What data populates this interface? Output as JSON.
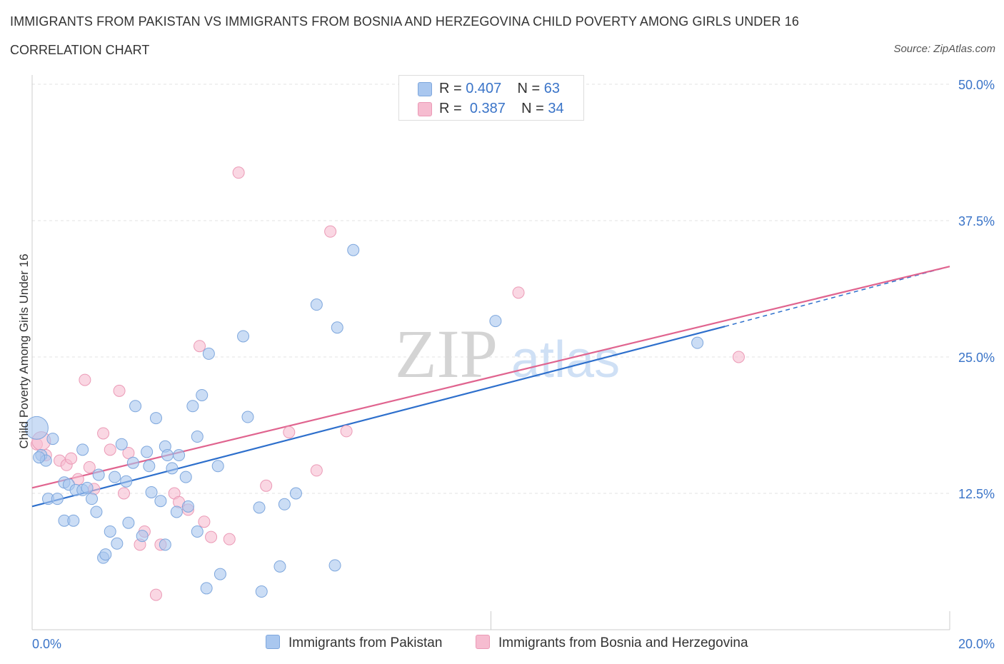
{
  "header": {
    "title": "IMMIGRANTS FROM PAKISTAN VS IMMIGRANTS FROM BOSNIA AND HERZEGOVINA CHILD POVERTY AMONG GIRLS UNDER 16",
    "subtitle": "CORRELATION CHART",
    "source": "Source: ZipAtlas.com"
  },
  "legend": {
    "rows": [
      {
        "r_label": "R =",
        "r_value": "0.407",
        "n_label": "N =",
        "n_value": "63"
      },
      {
        "r_label": "R =",
        "r_value": "0.387",
        "n_label": "N =",
        "n_value": "34"
      }
    ]
  },
  "bottom_legend": {
    "series1": "Immigrants from Pakistan",
    "series2": "Immigrants from Bosnia and Herzegovina"
  },
  "watermark": {
    "part1": "ZIP",
    "part2": "atlas"
  },
  "colors": {
    "blue_fill": "#a9c7ef",
    "blue_stroke": "#7ea7dd",
    "blue_line": "#2d6fcc",
    "pink_fill": "#f6bcd0",
    "pink_stroke": "#eb9ab6",
    "pink_line": "#e0648f",
    "axis_text": "#3a74c8",
    "grid": "#e3e3e3"
  },
  "chart_data": {
    "type": "scatter",
    "title": "IMMIGRANTS FROM PAKISTAN VS IMMIGRANTS FROM BOSNIA AND HERZEGOVINA CHILD POVERTY AMONG GIRLS UNDER 16",
    "xlabel": "",
    "ylabel": "Child Poverty Among Girls Under 16",
    "xlim": [
      0,
      20
    ],
    "ylim": [
      0,
      50
    ],
    "x_tick_labels": [
      "0.0%",
      "20.0%"
    ],
    "y_ticks": [
      12.5,
      25.0,
      37.5,
      50.0
    ],
    "y_tick_labels": [
      "12.5%",
      "25.0%",
      "37.5%",
      "50.0%"
    ],
    "grid": true,
    "legend_position": "top-center",
    "series": [
      {
        "name": "Immigrants from Pakistan",
        "R": 0.407,
        "N": 63,
        "trend": {
          "x": [
            0,
            15.1
          ],
          "y": [
            11.3,
            27.8
          ],
          "dashed_extension_to": [
            20,
            33.3
          ]
        },
        "points": [
          [
            0.1,
            18.5
          ],
          [
            0.2,
            16.0
          ],
          [
            0.3,
            15.5
          ],
          [
            0.45,
            17.5
          ],
          [
            0.35,
            12.0
          ],
          [
            0.55,
            12.0
          ],
          [
            0.7,
            13.5
          ],
          [
            0.8,
            13.3
          ],
          [
            0.7,
            10.0
          ],
          [
            0.9,
            10.0
          ],
          [
            0.95,
            12.8
          ],
          [
            1.1,
            12.8
          ],
          [
            1.1,
            16.5
          ],
          [
            1.2,
            13.0
          ],
          [
            1.3,
            12.0
          ],
          [
            1.4,
            10.8
          ],
          [
            1.45,
            14.2
          ],
          [
            1.55,
            6.6
          ],
          [
            1.6,
            6.9
          ],
          [
            1.7,
            9.0
          ],
          [
            1.8,
            14.0
          ],
          [
            1.85,
            7.9
          ],
          [
            1.95,
            17.0
          ],
          [
            2.05,
            13.6
          ],
          [
            2.1,
            9.8
          ],
          [
            2.2,
            15.3
          ],
          [
            2.25,
            20.5
          ],
          [
            2.4,
            8.6
          ],
          [
            2.5,
            16.3
          ],
          [
            2.55,
            15.0
          ],
          [
            2.6,
            12.6
          ],
          [
            2.7,
            19.4
          ],
          [
            2.8,
            11.8
          ],
          [
            2.9,
            16.8
          ],
          [
            2.95,
            16.0
          ],
          [
            3.05,
            14.8
          ],
          [
            3.15,
            10.8
          ],
          [
            3.2,
            16.0
          ],
          [
            3.35,
            14.0
          ],
          [
            3.4,
            11.3
          ],
          [
            3.5,
            20.5
          ],
          [
            3.6,
            9.0
          ],
          [
            3.6,
            17.7
          ],
          [
            3.7,
            21.5
          ],
          [
            3.8,
            3.8
          ],
          [
            3.85,
            25.3
          ],
          [
            4.05,
            15.0
          ],
          [
            4.1,
            5.1
          ],
          [
            4.6,
            26.9
          ],
          [
            4.7,
            19.5
          ],
          [
            4.95,
            11.2
          ],
          [
            5.0,
            3.5
          ],
          [
            5.4,
            5.8
          ],
          [
            5.5,
            11.5
          ],
          [
            5.75,
            12.5
          ],
          [
            6.2,
            29.8
          ],
          [
            6.6,
            5.9
          ],
          [
            6.65,
            27.7
          ],
          [
            7.0,
            34.8
          ],
          [
            10.1,
            28.3
          ],
          [
            14.5,
            26.3
          ],
          [
            0.15,
            15.8
          ],
          [
            2.9,
            7.8
          ]
        ]
      },
      {
        "name": "Immigrants from Bosnia and Herzegovina",
        "R": 0.387,
        "N": 34,
        "trend": {
          "x": [
            0,
            20
          ],
          "y": [
            13.0,
            33.3
          ]
        },
        "points": [
          [
            0.1,
            17.0
          ],
          [
            0.3,
            16.0
          ],
          [
            0.6,
            15.5
          ],
          [
            0.75,
            15.1
          ],
          [
            0.85,
            15.7
          ],
          [
            1.0,
            13.8
          ],
          [
            1.15,
            22.9
          ],
          [
            1.25,
            14.9
          ],
          [
            1.35,
            12.9
          ],
          [
            1.55,
            18.0
          ],
          [
            1.7,
            16.5
          ],
          [
            1.9,
            21.9
          ],
          [
            2.0,
            12.5
          ],
          [
            2.1,
            16.2
          ],
          [
            2.35,
            7.8
          ],
          [
            2.45,
            9.0
          ],
          [
            2.7,
            3.2
          ],
          [
            2.8,
            7.8
          ],
          [
            3.1,
            12.5
          ],
          [
            3.2,
            11.7
          ],
          [
            3.4,
            11.0
          ],
          [
            3.65,
            26.0
          ],
          [
            3.75,
            9.9
          ],
          [
            3.9,
            8.5
          ],
          [
            4.3,
            8.3
          ],
          [
            4.5,
            41.9
          ],
          [
            5.1,
            13.2
          ],
          [
            5.6,
            18.1
          ],
          [
            6.2,
            14.6
          ],
          [
            6.5,
            36.5
          ],
          [
            6.85,
            18.2
          ],
          [
            10.6,
            30.9
          ],
          [
            15.4,
            25.0
          ],
          [
            0.2,
            17.3
          ]
        ]
      }
    ]
  }
}
